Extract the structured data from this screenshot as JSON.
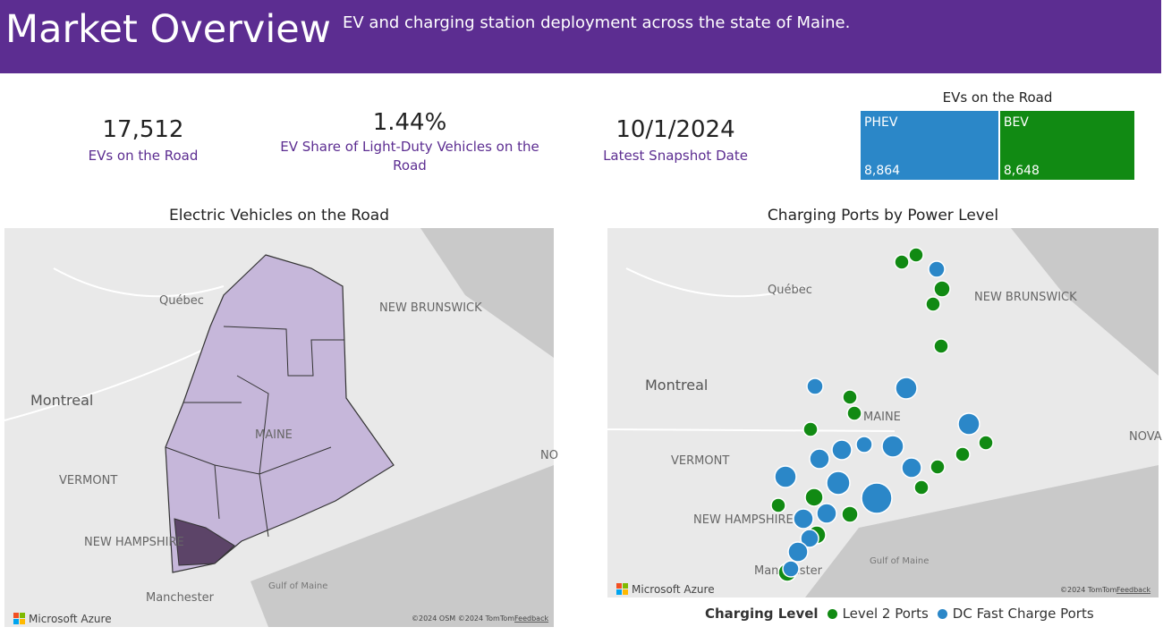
{
  "header": {
    "title": "Market Overview",
    "subtitle": "EV and charging station deployment across the state of Maine."
  },
  "kpis": [
    {
      "value": "17,512",
      "label": "EVs on the Road"
    },
    {
      "value": "1.44%",
      "label": "EV Share of Light-Duty Vehicles on the Road"
    },
    {
      "value": "10/1/2024",
      "label": "Latest Snapshot Date"
    }
  ],
  "treemap": {
    "title": "EVs on the Road",
    "items": [
      {
        "name": "PHEV",
        "value": 8864,
        "label": "8,864",
        "color": "#2b87c8"
      },
      {
        "name": "BEV",
        "value": 8648,
        "label": "8,648",
        "color": "#118a13"
      }
    ]
  },
  "maps": [
    {
      "title": "Electric Vehicles on the Road",
      "labels": [
        "Québec",
        "NEW BRUNSWICK",
        "Montreal",
        "MAINE",
        "VERMONT",
        "NEW HAMPSHIRE",
        "Manchester",
        "Gulf of Maine",
        "NO"
      ],
      "logo": "Microsoft Azure",
      "copyright": "©2024 OSM ©2024 TomTom",
      "feedback": "Feedback"
    },
    {
      "title": "Charging Ports by Power Level",
      "labels": [
        "Québec",
        "NEW BRUNSWICK",
        "Montreal",
        "MAINE",
        "VERMONT",
        "NEW HAMPSHIRE",
        "Gulf of Maine",
        "Manchester",
        "NOVA"
      ],
      "logo": "Microsoft Azure",
      "copyright": "©2024 TomTom",
      "feedback": "Feedback"
    }
  ],
  "legend": {
    "title": "Charging Level",
    "items": [
      {
        "name": "Level 2 Ports",
        "color": "#118a13"
      },
      {
        "name": "DC Fast Charge Ports",
        "color": "#2b87c8"
      }
    ]
  }
}
